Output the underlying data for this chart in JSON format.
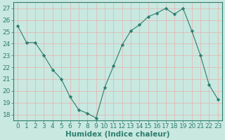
{
  "x": [
    0,
    1,
    2,
    3,
    4,
    5,
    6,
    7,
    8,
    9,
    10,
    11,
    12,
    13,
    14,
    15,
    16,
    17,
    18,
    19,
    20,
    21,
    22,
    23
  ],
  "y": [
    25.5,
    24.1,
    24.1,
    23.0,
    21.8,
    21.0,
    19.5,
    18.4,
    18.1,
    17.7,
    20.3,
    22.1,
    23.9,
    25.1,
    25.6,
    26.3,
    26.6,
    27.0,
    26.5,
    27.0,
    25.1,
    23.0,
    20.5,
    19.3
  ],
  "xlabel": "Humidex (Indice chaleur)",
  "ylim": [
    17.5,
    27.5
  ],
  "xlim": [
    -0.5,
    23.5
  ],
  "yticks": [
    18,
    19,
    20,
    21,
    22,
    23,
    24,
    25,
    26,
    27
  ],
  "xticks": [
    0,
    1,
    2,
    3,
    4,
    5,
    6,
    7,
    8,
    9,
    10,
    11,
    12,
    13,
    14,
    15,
    16,
    17,
    18,
    19,
    20,
    21,
    22,
    23
  ],
  "line_color": "#2e7d6e",
  "marker_color": "#2e7d6e",
  "bg_color": "#c8e8e0",
  "grid_color_major": "#e8b0b0",
  "grid_color_minor": "#e8b0b0",
  "axis_color": "#2e7d6e",
  "tick_color": "#2e7d6e",
  "label_color": "#2e7d6e",
  "xlabel_fontsize": 7.5,
  "tick_fontsize": 6.5
}
